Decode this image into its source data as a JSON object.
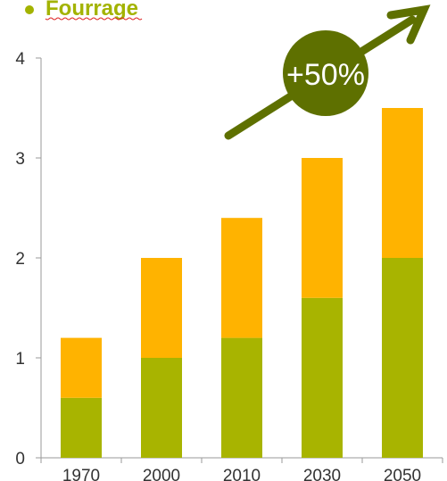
{
  "legend": {
    "label": "Fourrage",
    "color": "#a3b300"
  },
  "annotation": {
    "text": "+50%",
    "badge_color": "#5e7000",
    "arrow_color": "#5e7000"
  },
  "chart_data": {
    "type": "bar",
    "stacked": true,
    "categories": [
      "1970",
      "2000",
      "2010",
      "2030",
      "2050"
    ],
    "series": [
      {
        "values": [
          0.6,
          1.0,
          1.2,
          1.6,
          2.0
        ],
        "color": "#a8b400"
      },
      {
        "values": [
          0.6,
          1.0,
          1.2,
          1.4,
          1.5
        ],
        "color": "#ffb300"
      }
    ],
    "ylim": [
      0,
      4
    ],
    "yticks": [
      "0",
      "1",
      "2",
      "3",
      "4"
    ],
    "grid": false,
    "title": "",
    "xlabel": "",
    "ylabel": ""
  }
}
